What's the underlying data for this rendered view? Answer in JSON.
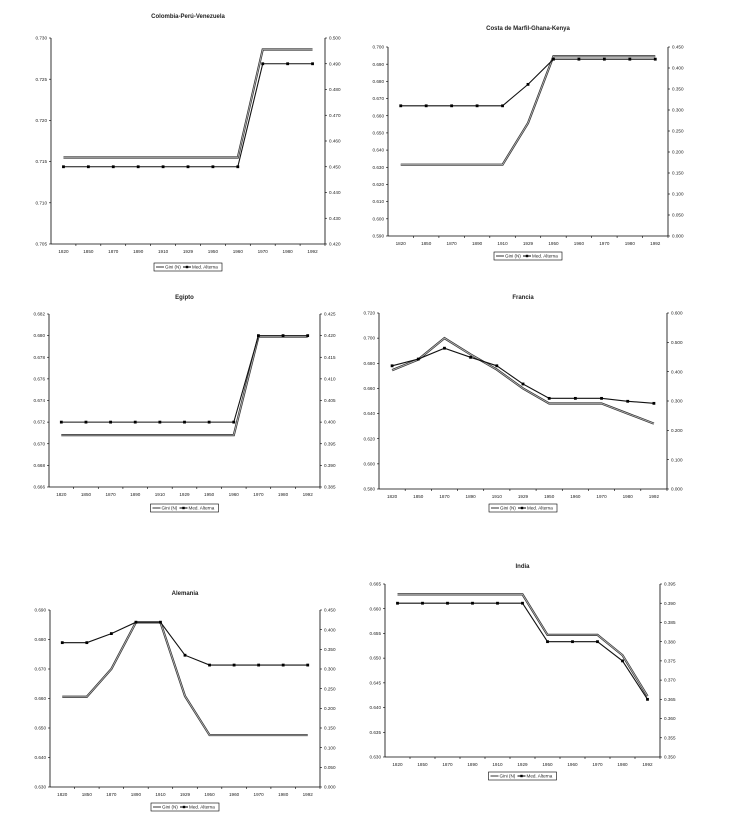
{
  "chart_data": [
    {
      "type": "line",
      "title": "Colombia-Perú-Venezuela",
      "categories": [
        "1820",
        "1850",
        "1870",
        "1890",
        "1910",
        "1929",
        "1950",
        "1960",
        "1970",
        "1980",
        "1992"
      ],
      "left_axis": {
        "min": 0.705,
        "max": 0.73,
        "tick_labels": [
          "0.705",
          "0.710",
          "0.715",
          "0.720",
          "0.725",
          "0.730"
        ]
      },
      "right_axis": {
        "min": 0.42,
        "max": 0.5,
        "tick_labels": [
          "0.420",
          "0.430",
          "0.440",
          "0.450",
          "0.460",
          "0.470",
          "0.480",
          "0.490",
          "0.500"
        ]
      },
      "series": [
        {
          "name": "Gini (N)",
          "axis": "left",
          "markers": false,
          "values": [
            0.7155,
            0.7155,
            0.7155,
            0.7155,
            0.7155,
            0.7155,
            0.7155,
            0.7155,
            0.7286,
            0.7286,
            0.7286
          ]
        },
        {
          "name": "Med. Alterna",
          "axis": "right",
          "markers": true,
          "values": [
            0.45,
            0.45,
            0.45,
            0.45,
            0.45,
            0.45,
            0.45,
            0.45,
            0.49,
            0.49,
            0.49
          ]
        }
      ],
      "legend": "bottom",
      "grid": false
    },
    {
      "type": "line",
      "title": "Costa de Marfil-Ghana-Kenya",
      "categories": [
        "1820",
        "1850",
        "1870",
        "1890",
        "1910",
        "1929",
        "1950",
        "1960",
        "1970",
        "1980",
        "1992"
      ],
      "left_axis": {
        "min": 0.59,
        "max": 0.7,
        "tick_labels": [
          "0.590",
          "0.600",
          "0.610",
          "0.620",
          "0.630",
          "0.640",
          "0.650",
          "0.660",
          "0.670",
          "0.680",
          "0.690",
          "0.700"
        ]
      },
      "right_axis": {
        "min": 0.0,
        "max": 0.45,
        "tick_labels": [
          "0.000",
          "0.050",
          "0.100",
          "0.150",
          "0.200",
          "0.250",
          "0.300",
          "0.350",
          "0.400",
          "0.450"
        ]
      },
      "series": [
        {
          "name": "Gini (N)",
          "axis": "left",
          "markers": false,
          "values": [
            0.6315,
            0.6315,
            0.6315,
            0.6315,
            0.6315,
            0.6557,
            0.6946,
            0.6946,
            0.6946,
            0.6946,
            0.6946
          ]
        },
        {
          "name": "Med. Alterna",
          "axis": "right",
          "markers": true,
          "values": [
            0.31,
            0.31,
            0.31,
            0.31,
            0.31,
            0.361,
            0.421,
            0.421,
            0.421,
            0.421,
            0.421
          ]
        }
      ],
      "legend": "bottom",
      "grid": false
    },
    {
      "type": "line",
      "title": "Egipto",
      "categories": [
        "1820",
        "1850",
        "1870",
        "1890",
        "1910",
        "1929",
        "1950",
        "1960",
        "1970",
        "1980",
        "1992"
      ],
      "left_axis": {
        "min": 0.666,
        "max": 0.682,
        "tick_labels": [
          "0.666",
          "0.668",
          "0.670",
          "0.672",
          "0.674",
          "0.676",
          "0.678",
          "0.680",
          "0.682"
        ]
      },
      "right_axis": {
        "min": 0.385,
        "max": 0.425,
        "tick_labels": [
          "0.385",
          "0.390",
          "0.395",
          "0.400",
          "0.405",
          "0.410",
          "0.415",
          "0.420",
          "0.425"
        ]
      },
      "series": [
        {
          "name": "Gini (N)",
          "axis": "left",
          "markers": false,
          "values": [
            0.6708,
            0.6708,
            0.6708,
            0.6708,
            0.6708,
            0.6708,
            0.6708,
            0.6708,
            0.6799,
            0.6799,
            0.6799
          ]
        },
        {
          "name": "Med. Alterna",
          "axis": "right",
          "markers": true,
          "values": [
            0.4,
            0.4,
            0.4,
            0.4,
            0.4,
            0.4,
            0.4,
            0.4,
            0.42,
            0.42,
            0.42
          ]
        }
      ],
      "legend": "bottom",
      "grid": false
    },
    {
      "type": "line",
      "title": "Francia",
      "categories": [
        "1820",
        "1850",
        "1870",
        "1890",
        "1910",
        "1929",
        "1950",
        "1960",
        "1970",
        "1980",
        "1992"
      ],
      "left_axis": {
        "min": 0.58,
        "max": 0.72,
        "tick_labels": [
          "0.580",
          "0.600",
          "0.620",
          "0.640",
          "0.660",
          "0.680",
          "0.700",
          "0.720"
        ]
      },
      "right_axis": {
        "min": 0.0,
        "max": 0.6,
        "tick_labels": [
          "0.000",
          "0.100",
          "0.200",
          "0.300",
          "0.400",
          "0.500",
          "0.600"
        ]
      },
      "series": [
        {
          "name": "Gini (N)",
          "axis": "left",
          "markers": false,
          "values": [
            0.6745,
            0.683,
            0.7,
            0.687,
            0.675,
            0.66,
            0.648,
            0.648,
            0.648,
            0.64,
            0.632
          ]
        },
        {
          "name": "Med. Alterna",
          "axis": "right",
          "markers": true,
          "values": [
            0.42,
            0.443,
            0.48,
            0.449,
            0.42,
            0.358,
            0.309,
            0.309,
            0.309,
            0.299,
            0.292
          ]
        }
      ],
      "legend": "bottom",
      "grid": false
    },
    {
      "type": "line",
      "title": "Alemania",
      "categories": [
        "1820",
        "1850",
        "1870",
        "1890",
        "1910",
        "1929",
        "1950",
        "1960",
        "1970",
        "1980",
        "1992"
      ],
      "left_axis": {
        "min": 0.63,
        "max": 0.69,
        "tick_labels": [
          "0.630",
          "0.640",
          "0.650",
          "0.660",
          "0.670",
          "0.680",
          "0.690"
        ]
      },
      "right_axis": {
        "min": 0.0,
        "max": 0.45,
        "tick_labels": [
          "0.000",
          "0.050",
          "0.100",
          "0.150",
          "0.200",
          "0.250",
          "0.300",
          "0.350",
          "0.400",
          "0.450"
        ]
      },
      "series": [
        {
          "name": "Gini (N)",
          "axis": "left",
          "markers": false,
          "values": [
            0.6606,
            0.6606,
            0.67,
            0.6858,
            0.6858,
            0.6608,
            0.6476,
            0.6476,
            0.6476,
            0.6476,
            0.6476
          ]
        },
        {
          "name": "Med. Alterna",
          "axis": "right",
          "markers": true,
          "values": [
            0.367,
            0.367,
            0.39,
            0.419,
            0.419,
            0.335,
            0.31,
            0.31,
            0.31,
            0.31,
            0.31
          ]
        }
      ],
      "legend": "bottom",
      "grid": false
    },
    {
      "type": "line",
      "title": "India",
      "categories": [
        "1820",
        "1850",
        "1870",
        "1890",
        "1910",
        "1929",
        "1950",
        "1960",
        "1970",
        "1980",
        "1992"
      ],
      "left_axis": {
        "min": 0.63,
        "max": 0.665,
        "tick_labels": [
          "0.630",
          "0.635",
          "0.640",
          "0.645",
          "0.650",
          "0.655",
          "0.660",
          "0.665"
        ]
      },
      "right_axis": {
        "min": 0.35,
        "max": 0.395,
        "tick_labels": [
          "0.350",
          "0.355",
          "0.360",
          "0.365",
          "0.370",
          "0.375",
          "0.380",
          "0.385",
          "0.390",
          "0.395"
        ]
      },
      "series": [
        {
          "name": "Gini (N)",
          "axis": "left",
          "markers": false,
          "values": [
            0.6629,
            0.6629,
            0.6629,
            0.6629,
            0.6629,
            0.6629,
            0.6547,
            0.6547,
            0.6547,
            0.6506,
            0.6423
          ]
        },
        {
          "name": "Med. Alterna",
          "axis": "right",
          "markers": true,
          "values": [
            0.39,
            0.39,
            0.39,
            0.39,
            0.39,
            0.39,
            0.38,
            0.38,
            0.38,
            0.375,
            0.365
          ]
        }
      ],
      "legend": "bottom",
      "grid": false
    }
  ]
}
